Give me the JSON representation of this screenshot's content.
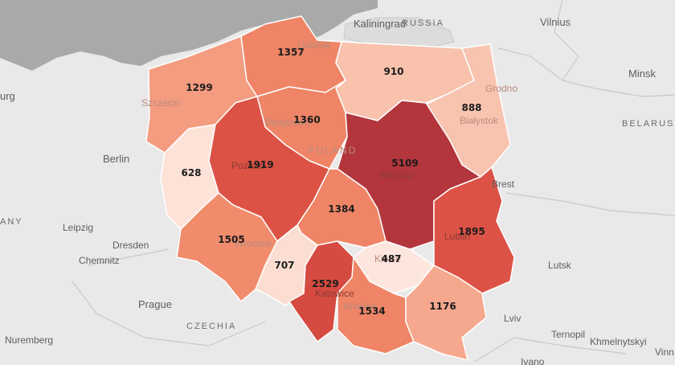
{
  "cities": {
    "kaliningrad": "Kaliningrad",
    "vilnius": "Vilnius",
    "minsk": "Minsk",
    "grodno": "Grodno",
    "bialystok": "Białystok",
    "brest": "Brest",
    "berlin": "Berlin",
    "leipzig": "Leipzig",
    "dresden": "Dresden",
    "chemnitz": "Chemnitz",
    "prague": "Prague",
    "nuremberg": "Nuremberg",
    "lutsk": "Lutsk",
    "lviv": "Lviv",
    "ternopil": "Ternopil",
    "khmelnytskyi": "Khmelnytskyi",
    "vinn": "Vinn",
    "szczecin": "Szczecin",
    "gdansk": "Gdańsk",
    "bydgoszcz": "Bydgoszcz",
    "poznan": "Poznań",
    "warsaw": "Warsaw",
    "lublin": "Lublin",
    "wroclaw": "Wrocław",
    "katowice": "Katowice",
    "krakow": "Kraków",
    "kielce": "Kielce",
    "burg": "urg",
    "ivano": "Ivano"
  },
  "countries": {
    "russia": "RUSSIA",
    "belarus": "BELARUS",
    "germany": "ANY",
    "czechia": "CZECHIA",
    "poland": "POLAND"
  },
  "regions": [
    {
      "id": "zachodniopomorskie",
      "value": 1299,
      "color": "#f39c80"
    },
    {
      "id": "pomorskie",
      "value": 1357,
      "color": "#ef8566"
    },
    {
      "id": "warminsko-mazurskie",
      "value": 910,
      "color": "#f8c2ad"
    },
    {
      "id": "podlaskie",
      "value": 888,
      "color": "#f8c4b0"
    },
    {
      "id": "kujawsko-pomorskie",
      "value": 1360,
      "color": "#ef8566"
    },
    {
      "id": "lubuskie",
      "value": 628,
      "color": "#fde2d8"
    },
    {
      "id": "wielkopolskie",
      "value": 1919,
      "color": "#dc5245"
    },
    {
      "id": "mazowieckie",
      "value": 5109,
      "color": "#b3363d"
    },
    {
      "id": "lodzkie",
      "value": 1384,
      "color": "#ef8566"
    },
    {
      "id": "lubelskie",
      "value": 1895,
      "color": "#dd5246"
    },
    {
      "id": "dolnoslaskie",
      "value": 1505,
      "color": "#f08c6c"
    },
    {
      "id": "opolskie",
      "value": 707,
      "color": "#fcddd1"
    },
    {
      "id": "slaskie",
      "value": 2529,
      "color": "#d54a41"
    },
    {
      "id": "swietokrzyskie",
      "value": 487,
      "color": "#fde6de"
    },
    {
      "id": "malopolskie",
      "value": 1534,
      "color": "#ef8566"
    },
    {
      "id": "podkarpackie",
      "value": 1176,
      "color": "#f5a88e"
    }
  ]
}
